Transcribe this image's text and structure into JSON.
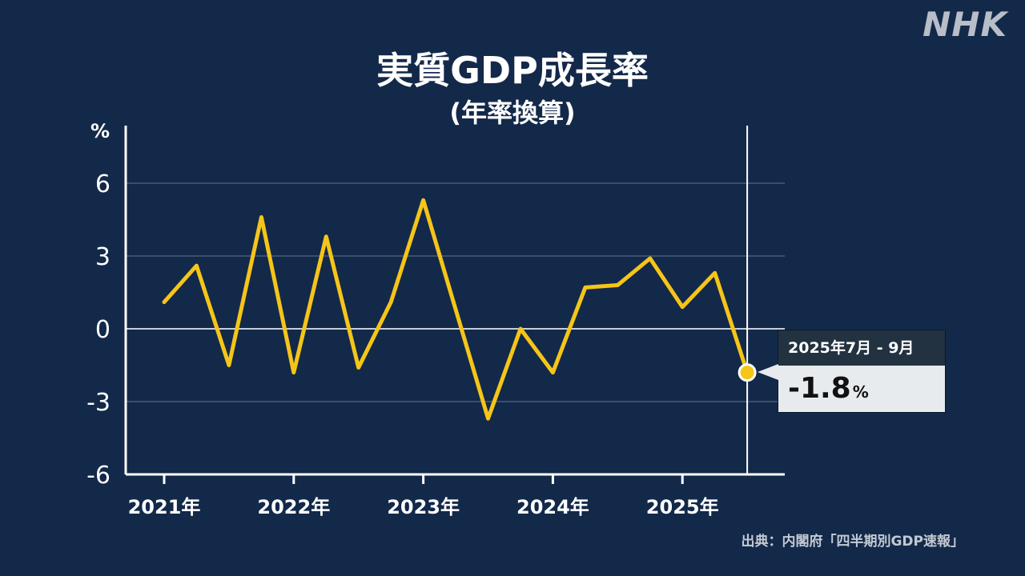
{
  "logo": "NHK",
  "source": "出典：内閣府「四半期別GDP速報」",
  "colors": {
    "background": "#13294a",
    "line": "#f5c518",
    "grid": "#3a4f6e",
    "zero_line": "#c7ced8",
    "axis": "#ffffff"
  },
  "callout": {
    "period": "2025年7月 - 9月",
    "value": "-1.8",
    "unit": "%"
  },
  "chart_data": {
    "type": "line",
    "title": "実質GDP成長率",
    "subtitle": "(年率換算)",
    "ylabel": "%",
    "ylim": [
      -6,
      8
    ],
    "yticks": [
      6,
      3,
      0,
      -3,
      -6
    ],
    "x_year_ticks": [
      "2021年",
      "2022年",
      "2023年",
      "2024年",
      "2025年"
    ],
    "grid": true,
    "series": [
      {
        "values": [
          1.1,
          2.6,
          -1.5,
          4.6,
          -1.8,
          3.8,
          -1.6,
          1.1,
          5.3,
          0.8,
          -3.7,
          0.0,
          -1.8,
          1.7,
          1.8,
          2.9,
          0.9,
          2.3,
          -1.8
        ]
      }
    ]
  }
}
